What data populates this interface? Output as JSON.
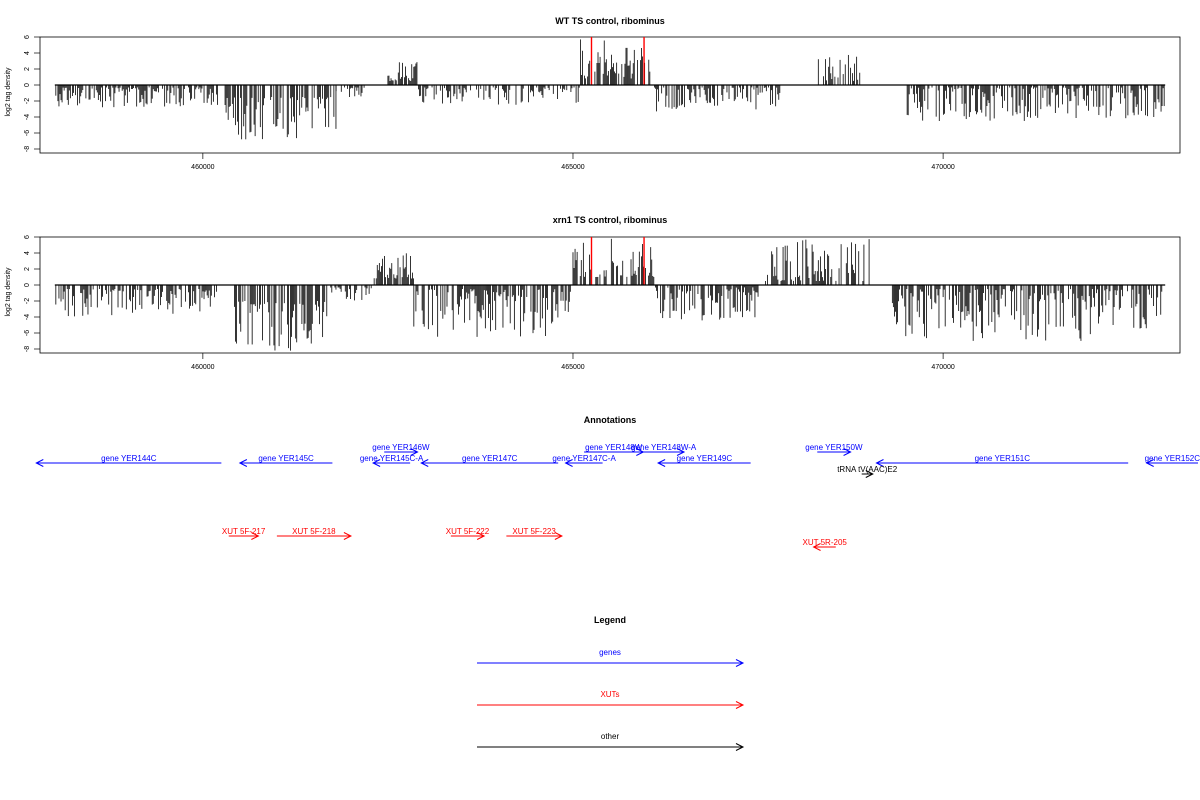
{
  "colors": {
    "gene": "#0000ff",
    "xut": "#ff0000",
    "other": "#000000",
    "marker": "#ff0000",
    "signal": "#000000"
  },
  "chart_data": [
    {
      "type": "bar",
      "id": "wt",
      "title": "WT TS control, ribominus",
      "ylabel": "log2 tag density",
      "xlim": [
        457800,
        473200
      ],
      "ylim": [
        -8.5,
        6
      ],
      "x_ticks": [
        460000,
        465000,
        470000
      ],
      "y_ticks": [
        -8,
        -6,
        -4,
        -2,
        0,
        2,
        4,
        6
      ],
      "data_start": 458000,
      "data_end": 473000,
      "markers_x": [
        465250,
        465960
      ],
      "segments": [
        {
          "x_start": 458000,
          "x_end": 460200,
          "strand": "-",
          "min": 0.3,
          "max": 2.8
        },
        {
          "x_start": 460300,
          "x_end": 461800,
          "strand": "-",
          "min": 1.5,
          "max": 6.8
        },
        {
          "x_start": 461800,
          "x_end": 462200,
          "strand": "-",
          "min": 0.3,
          "max": 1.5
        },
        {
          "x_start": 462500,
          "x_end": 462900,
          "strand": "+",
          "min": 0.5,
          "max": 3.2
        },
        {
          "x_start": 462900,
          "x_end": 465100,
          "strand": "-",
          "min": 0.3,
          "max": 2.5
        },
        {
          "x_start": 465100,
          "x_end": 466050,
          "strand": "+",
          "min": 0.8,
          "max": 5.8
        },
        {
          "x_start": 466100,
          "x_end": 467800,
          "strand": "-",
          "min": 0.3,
          "max": 3.5
        },
        {
          "x_start": 468300,
          "x_end": 468900,
          "strand": "+",
          "min": 0.5,
          "max": 3.8
        },
        {
          "x_start": 469500,
          "x_end": 473000,
          "strand": "-",
          "min": 0.3,
          "max": 4.5
        }
      ]
    },
    {
      "type": "bar",
      "id": "xrn1",
      "title": "xrn1 TS control, ribominus",
      "ylabel": "log2 tag density",
      "xlim": [
        457800,
        473200
      ],
      "ylim": [
        -8.5,
        6
      ],
      "x_ticks": [
        460000,
        465000,
        470000
      ],
      "y_ticks": [
        -8,
        -6,
        -4,
        -2,
        0,
        2,
        4,
        6
      ],
      "data_start": 458000,
      "data_end": 473000,
      "markers_x": [
        465250,
        465960
      ],
      "segments": [
        {
          "x_start": 458000,
          "x_end": 460200,
          "strand": "-",
          "min": 0.5,
          "max": 4.0
        },
        {
          "x_start": 460400,
          "x_end": 461700,
          "strand": "-",
          "min": 2.0,
          "max": 8.2
        },
        {
          "x_start": 461700,
          "x_end": 462300,
          "strand": "-",
          "min": 0.3,
          "max": 2.0
        },
        {
          "x_start": 462300,
          "x_end": 462850,
          "strand": "+",
          "min": 0.8,
          "max": 4.2
        },
        {
          "x_start": 462850,
          "x_end": 465000,
          "strand": "-",
          "min": 0.5,
          "max": 6.5
        },
        {
          "x_start": 465000,
          "x_end": 466100,
          "strand": "+",
          "min": 1.0,
          "max": 6.0
        },
        {
          "x_start": 466100,
          "x_end": 467500,
          "strand": "-",
          "min": 0.3,
          "max": 4.5
        },
        {
          "x_start": 467600,
          "x_end": 469000,
          "strand": "+",
          "min": 0.5,
          "max": 5.8
        },
        {
          "x_start": 469300,
          "x_end": 473000,
          "strand": "-",
          "min": 0.5,
          "max": 7.0
        }
      ]
    }
  ],
  "annotations": {
    "title": "Annotations",
    "features": [
      {
        "label": "gene YER144C",
        "start": 460250,
        "end": 457750,
        "type": "gene",
        "row": 1
      },
      {
        "label": "gene YER145C",
        "start": 461750,
        "end": 460500,
        "type": "gene",
        "row": 1
      },
      {
        "label": "gene YER146W",
        "start": 462450,
        "end": 462900,
        "type": "gene",
        "row": 0
      },
      {
        "label": "gene YER145C-A",
        "start": 462800,
        "end": 462300,
        "type": "gene",
        "row": 1
      },
      {
        "label": "gene YER147C",
        "start": 464800,
        "end": 462950,
        "type": "gene",
        "row": 1
      },
      {
        "label": "gene YER148W",
        "start": 465150,
        "end": 465950,
        "type": "gene",
        "row": 0
      },
      {
        "label": "gene YER148W-A",
        "start": 465950,
        "end": 466500,
        "type": "gene",
        "row": 0
      },
      {
        "label": "gene YER147C-A",
        "start": 465400,
        "end": 464900,
        "type": "gene",
        "row": 1
      },
      {
        "label": "gene YER149C",
        "start": 467400,
        "end": 466150,
        "type": "gene",
        "row": 1
      },
      {
        "label": "gene YER150W",
        "start": 468300,
        "end": 468750,
        "type": "gene",
        "row": 0
      },
      {
        "label": "gene YER151C",
        "start": 472500,
        "end": 469100,
        "type": "gene",
        "row": 1
      },
      {
        "label": "gene YER152C",
        "start": 474500,
        "end": 472750,
        "type": "gene",
        "row": 1
      },
      {
        "label": "tRNA tV(AAC)E2",
        "start": 468900,
        "end": 469050,
        "type": "other",
        "row": 2
      },
      {
        "label": "XUT 5F-217",
        "start": 460350,
        "end": 460750,
        "type": "xut",
        "row": 4
      },
      {
        "label": "XUT 5F-218",
        "start": 461000,
        "end": 462000,
        "type": "xut",
        "row": 4
      },
      {
        "label": "XUT 5F-222",
        "start": 463350,
        "end": 463800,
        "type": "xut",
        "row": 4
      },
      {
        "label": "XUT 5F-223",
        "start": 464100,
        "end": 464850,
        "type": "xut",
        "row": 4
      },
      {
        "label": "XUT 5R-205",
        "start": 468550,
        "end": 468250,
        "type": "xut",
        "row": 5
      }
    ]
  },
  "legend": {
    "title": "Legend",
    "items": [
      {
        "label": "genes",
        "type": "gene"
      },
      {
        "label": "XUTs",
        "type": "xut"
      },
      {
        "label": "other",
        "type": "other"
      }
    ]
  }
}
